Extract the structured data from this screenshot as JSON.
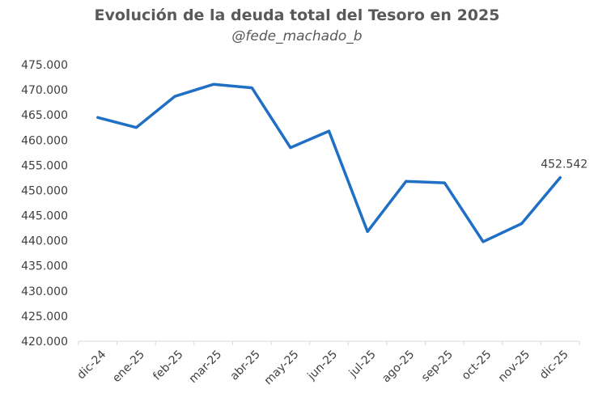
{
  "chart_data": {
    "type": "line",
    "title": "Evolución de la deuda total del Tesoro en 2025",
    "subtitle": "@fede_machado_b",
    "categories": [
      "dic-24",
      "ene-25",
      "feb-25",
      "mar-25",
      "abr-25",
      "may-25",
      "jun-25",
      "jul-25",
      "ago-25",
      "sep-25",
      "oct-25",
      "nov-25",
      "dic-25"
    ],
    "series": [
      {
        "values": [
          464.5,
          462.5,
          468.7,
          471.1,
          470.4,
          458.5,
          461.8,
          441.8,
          451.8,
          451.5,
          439.8,
          443.4,
          452.542
        ]
      }
    ],
    "ylim": [
      420,
      475
    ],
    "yticks": [
      420,
      425,
      430,
      435,
      440,
      445,
      450,
      455,
      460,
      465,
      470,
      475
    ],
    "ytick_labels": [
      "420.000",
      "425.000",
      "430.000",
      "435.000",
      "440.000",
      "445.000",
      "450.000",
      "455.000",
      "460.000",
      "465.000",
      "470.000",
      "475.000"
    ],
    "data_label": {
      "index": 12,
      "text": "452.542"
    },
    "line_color": "#1f6fc4",
    "grid": false
  }
}
